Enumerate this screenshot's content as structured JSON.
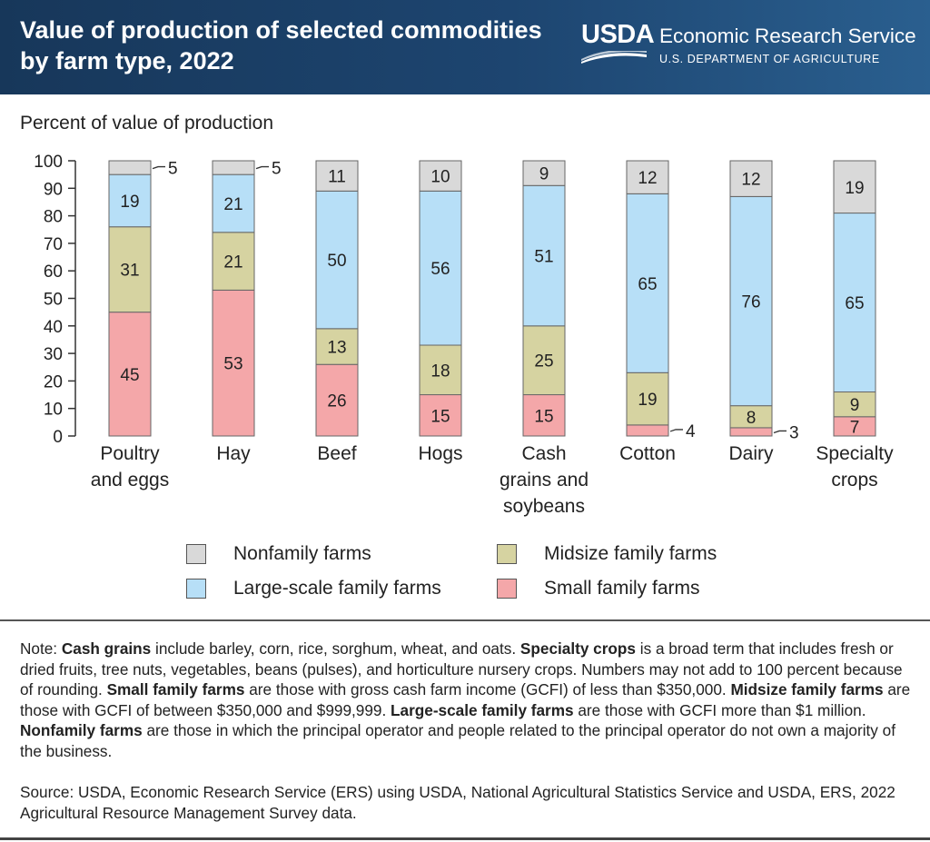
{
  "header": {
    "title_line1": "Value of production of selected commodities",
    "title_line2": "by farm type, 2022",
    "logo_text": "USDA",
    "agency_name": "Economic Research Service",
    "department": "U.S. DEPARTMENT OF AGRICULTURE"
  },
  "colors": {
    "header_bg": "#1d4570",
    "nonfamily": "#d9d9d9",
    "large_scale": "#b7dff7",
    "midsize": "#d6d3a1",
    "small": "#f4a7a9"
  },
  "chart_data": {
    "type": "bar",
    "stacked": true,
    "ylabel": "Percent of value of production",
    "xlabel": "",
    "ylim": [
      0,
      100
    ],
    "yticks": [
      0,
      10,
      20,
      30,
      40,
      50,
      60,
      70,
      80,
      90,
      100
    ],
    "grid": false,
    "legend_position": "bottom",
    "categories": [
      [
        "Poultry",
        "and eggs"
      ],
      [
        "Hay"
      ],
      [
        "Beef"
      ],
      [
        "Hogs"
      ],
      [
        "Cash",
        "grains and",
        "soybeans"
      ],
      [
        "Cotton"
      ],
      [
        "Dairy"
      ],
      [
        "Specialty",
        "crops"
      ]
    ],
    "series": [
      {
        "name": "Small family farms",
        "color": "#f4a7a9",
        "values": [
          45,
          53,
          26,
          15,
          15,
          4,
          3,
          7
        ]
      },
      {
        "name": "Midsize family farms",
        "color": "#d6d3a1",
        "values": [
          31,
          21,
          13,
          18,
          25,
          19,
          8,
          9
        ]
      },
      {
        "name": "Large-scale family farms",
        "color": "#b7dff7",
        "values": [
          19,
          21,
          50,
          56,
          51,
          65,
          76,
          65
        ]
      },
      {
        "name": "Nonfamily farms",
        "color": "#d9d9d9",
        "values": [
          5,
          5,
          11,
          10,
          9,
          12,
          12,
          19
        ]
      }
    ]
  },
  "legend": {
    "nonfamily": "Nonfamily farms",
    "midsize": "Midsize family farms",
    "large_scale": "Large-scale family farms",
    "small": "Small family farms"
  },
  "note": {
    "prefix": "Note: ",
    "cash_grains_term": "Cash grains",
    "cash_grains_text": " include barley, corn, rice, sorghum, wheat, and oats. ",
    "specialty_term": "Specialty crops",
    "specialty_text": " is a broad term that includes fresh or dried fruits, tree nuts, vegetables, beans (pulses), and horticulture nursery crops. Numbers may not add to 100 percent because of rounding. ",
    "small_term": "Small family farms",
    "small_text": " are those with gross cash farm income (GCFI) of less than $350,000. ",
    "midsize_term": "Midsize family farms",
    "midsize_text": " are those with GCFI of between $350,000 and $999,999. ",
    "large_term": "Large-scale family farms",
    "large_text": " are those with GCFI more than $1 million. ",
    "nonfamily_term": "Nonfamily farms",
    "nonfamily_text": " are those in which the principal operator and people related to the principal operator do not own a majority of the business."
  },
  "source": "Source: USDA, Economic Research Service (ERS) using USDA, National Agricultural Statistics Service and USDA, ERS, 2022 Agricultural Resource Management Survey data."
}
